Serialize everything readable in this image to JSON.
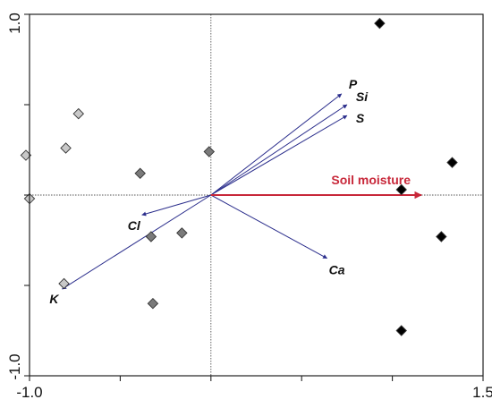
{
  "chart_data": {
    "type": "scatter",
    "title": "",
    "xlabel": "",
    "ylabel": "",
    "xlim": [
      -1.0,
      1.5
    ],
    "ylim": [
      -1.0,
      1.0
    ],
    "x_tick_labels": [
      {
        "value": -1.0,
        "label": "-1.0"
      },
      {
        "value": 1.5,
        "label": "1.5"
      }
    ],
    "y_tick_labels": [
      {
        "value": 1.0,
        "label": "1.0"
      },
      {
        "value": -1.0,
        "label": "-1.0"
      }
    ],
    "x_minor_ticks": [
      -0.5,
      0.0,
      0.5,
      1.0
    ],
    "y_minor_ticks": [
      -0.5,
      0.0,
      0.5
    ],
    "grid": false,
    "reference_lines": [
      0,
      0
    ],
    "colors": {
      "vector": "#2b2e8c",
      "soil_moisture": "#c8283a",
      "light_points": "#c8c8c8",
      "medium_points": "#7a7a7a",
      "dark_points": "#000000"
    },
    "vectors": [
      {
        "name": "P",
        "x": 0.72,
        "y": 0.56
      },
      {
        "name": "Si",
        "x": 0.75,
        "y": 0.5
      },
      {
        "name": "S",
        "x": 0.75,
        "y": 0.44
      },
      {
        "name": "Ca",
        "x": 0.64,
        "y": -0.35
      },
      {
        "name": "Cl",
        "x": -0.38,
        "y": -0.11
      },
      {
        "name": "K",
        "x": -0.82,
        "y": -0.52
      },
      {
        "name": "Soil moisture",
        "x": 1.16,
        "y": 0.0
      }
    ],
    "series": [
      {
        "group": "light",
        "points": [
          {
            "x": -0.73,
            "y": 0.45
          },
          {
            "x": -0.8,
            "y": 0.26
          },
          {
            "x": -1.02,
            "y": 0.22
          },
          {
            "x": -1.0,
            "y": -0.02
          },
          {
            "x": -0.81,
            "y": -0.49
          }
        ]
      },
      {
        "group": "medium",
        "points": [
          {
            "x": -0.01,
            "y": 0.24
          },
          {
            "x": -0.39,
            "y": 0.12
          },
          {
            "x": -0.16,
            "y": -0.21
          },
          {
            "x": -0.33,
            "y": -0.23
          },
          {
            "x": -0.32,
            "y": -0.6
          }
        ]
      },
      {
        "group": "dark",
        "points": [
          {
            "x": 0.93,
            "y": 0.95
          },
          {
            "x": 1.33,
            "y": 0.18
          },
          {
            "x": 1.05,
            "y": 0.03
          },
          {
            "x": 1.27,
            "y": -0.23
          },
          {
            "x": 1.05,
            "y": -0.75
          }
        ]
      }
    ]
  }
}
